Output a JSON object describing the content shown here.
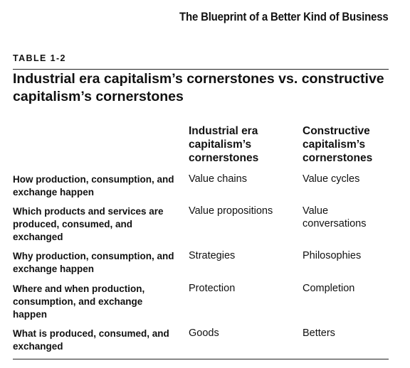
{
  "running_head": "The Blueprint of a Better Kind of Business",
  "table": {
    "label": "TABLE 1-2",
    "title": "Industrial era capitalism’s cornerstones vs. constructive capitalism’s cornerstones",
    "columns": [
      "Industrial era capitalism’s cornerstones",
      "Constructive capitalism’s cornerstones"
    ],
    "rows": [
      {
        "label": "How production, consumption, and exchange happen",
        "industrial": "Value chains",
        "constructive": "Value cycles"
      },
      {
        "label": "Which products and services are produced, consumed, and exchanged",
        "industrial": "Value propositions",
        "constructive": "Value conversations"
      },
      {
        "label": "Why production, consumption, and exchange happen",
        "industrial": "Strategies",
        "constructive": "Philosophies"
      },
      {
        "label": "Where and when production, consumption, and exchange happen",
        "industrial": "Protection",
        "constructive": "Completion"
      },
      {
        "label": "What is produced, consumed, and exchanged",
        "industrial": "Goods",
        "constructive": "Betters"
      }
    ]
  }
}
